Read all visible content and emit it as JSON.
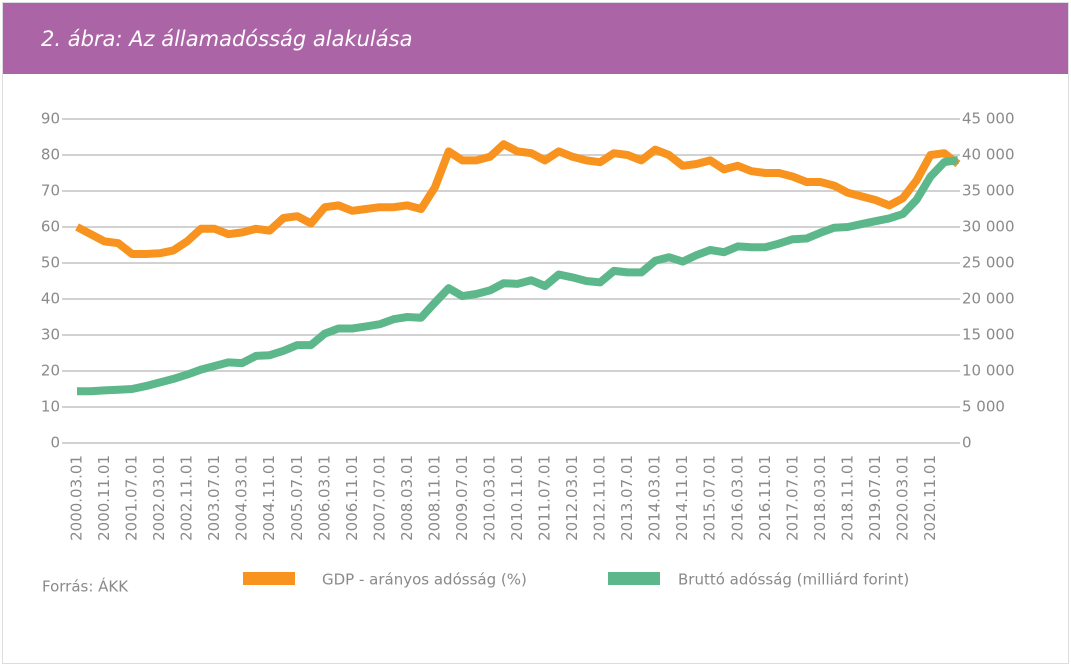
{
  "header": {
    "title": "2. ábra: Az államadósság alakulása"
  },
  "chart_data": {
    "type": "line",
    "source": "Forrás: ÁKK",
    "categories": [
      "2000.03.01",
      null,
      "2000.11.01",
      null,
      "2001.07.01",
      null,
      "2002.03.01",
      null,
      "2002.11.01",
      null,
      "2003.07.01",
      null,
      "2004.03.01",
      null,
      "2004.11.01",
      null,
      "2005.07.01",
      null,
      "2006.03.01",
      null,
      "2006.11.01",
      null,
      "2007.07.01",
      null,
      "2008.03.01",
      null,
      "2008.11.01",
      null,
      "2009.07.01",
      null,
      "2010.03.01",
      null,
      "2010.11.01",
      null,
      "2011.07.01",
      null,
      "2012.03.01",
      null,
      "2012.11.01",
      null,
      "2013.07.01",
      null,
      "2014.03.01",
      null,
      "2014.11.01",
      null,
      "2015.07.01",
      null,
      "2016.03.01",
      null,
      "2016.11.01",
      null,
      "2017.07.01",
      null,
      "2018.03.01",
      null,
      "2018.11.01",
      null,
      "2019.07.01",
      null,
      "2020.03.01",
      null,
      "2020.11.01",
      null,
      null
    ],
    "series": [
      {
        "name": "GDP - arányos adósság (%)",
        "color": "#f7931e",
        "values": [
          60,
          58,
          56,
          55.5,
          52.5,
          52.5,
          52.7,
          53.5,
          56,
          59.5,
          59.5,
          58,
          58.5,
          59.5,
          59,
          62.5,
          63,
          61,
          65.5,
          66,
          64.5,
          65,
          65.5,
          65.5,
          66,
          65,
          71,
          81,
          78.5,
          78.5,
          79.5,
          83,
          81,
          80.5,
          78.5,
          81,
          79.5,
          78.5,
          78,
          80.5,
          80,
          78.5,
          81.5,
          80,
          77,
          77.5,
          78.5,
          76,
          77,
          75.5,
          75,
          75,
          74,
          72.5,
          72.5,
          71.5,
          69.5,
          68.5,
          67.5,
          66,
          68,
          73,
          80,
          80.5,
          77.5
        ]
      },
      {
        "name": "Bruttó adósság (milliárd forint)",
        "color": "#5cb88a",
        "axis": "y2",
        "values": [
          7200,
          7200,
          7300,
          7400,
          7500,
          7900,
          8400,
          8900,
          9500,
          10200,
          10700,
          11200,
          11100,
          12100,
          12200,
          12800,
          13600,
          13600,
          15200,
          15900,
          15900,
          16200,
          16500,
          17200,
          17500,
          17400,
          19500,
          21500,
          20400,
          20700,
          21200,
          22200,
          22100,
          22600,
          21800,
          23400,
          23000,
          22500,
          22300,
          23900,
          23700,
          23700,
          25300,
          25800,
          25200,
          26100,
          26800,
          26500,
          27300,
          27200,
          27200,
          27700,
          28300,
          28400,
          29200,
          29900,
          30000,
          30400,
          30800,
          31200,
          31800,
          33800,
          37000,
          39000,
          39300
        ]
      }
    ],
    "ylim": [
      0,
      90
    ],
    "yticks": [
      0,
      10,
      20,
      30,
      40,
      50,
      60,
      70,
      80,
      90
    ],
    "y2lim": [
      0,
      45000
    ],
    "y2ticks": [
      0,
      {
        "value": 5000,
        "label": "5 000"
      },
      {
        "value": 10000,
        "label": "10 000"
      },
      {
        "value": 15000,
        "label": "15 000"
      },
      {
        "value": 20000,
        "label": "20 000"
      },
      {
        "value": 25000,
        "label": "25 000"
      },
      {
        "value": 30000,
        "label": "30 000"
      },
      {
        "value": 35000,
        "label": "35 000"
      },
      {
        "value": 40000,
        "label": "40 000"
      },
      {
        "value": 45000,
        "label": "45 000"
      }
    ],
    "grid": true,
    "legend": "bottom"
  }
}
